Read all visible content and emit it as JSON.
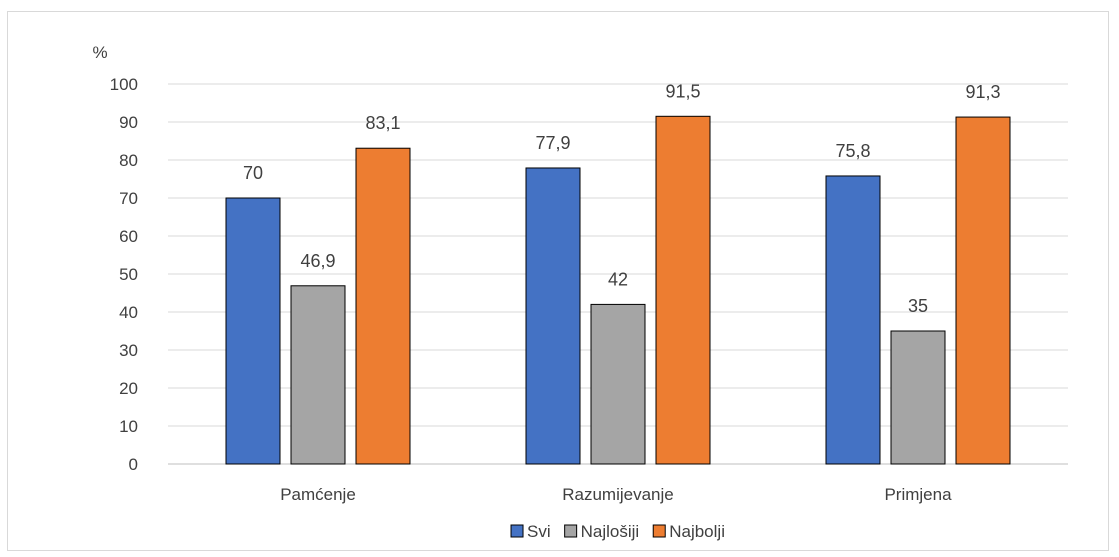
{
  "chart_data": {
    "type": "bar",
    "y_unit_label": "%",
    "categories": [
      "Pamćenje",
      "Razumijevanje",
      "Primjena"
    ],
    "series": [
      {
        "name": "Svi",
        "color": "#4472c4",
        "values": [
          70,
          77.9,
          75.8
        ],
        "labels": [
          "70",
          "77,9",
          "75,8"
        ]
      },
      {
        "name": "Najlošiji",
        "color": "#a5a5a5",
        "values": [
          46.9,
          42,
          35
        ],
        "labels": [
          "46,9",
          "42",
          "35"
        ]
      },
      {
        "name": "Najbolji",
        "color": "#ed7d31",
        "values": [
          83.1,
          91.5,
          91.3
        ],
        "labels": [
          "83,1",
          "91,5",
          "91,3"
        ]
      }
    ],
    "ylim": [
      0,
      100
    ],
    "yticks": [
      0,
      10,
      20,
      30,
      40,
      50,
      60,
      70,
      80,
      90,
      100
    ],
    "grid": true,
    "legend_position": "bottom"
  }
}
